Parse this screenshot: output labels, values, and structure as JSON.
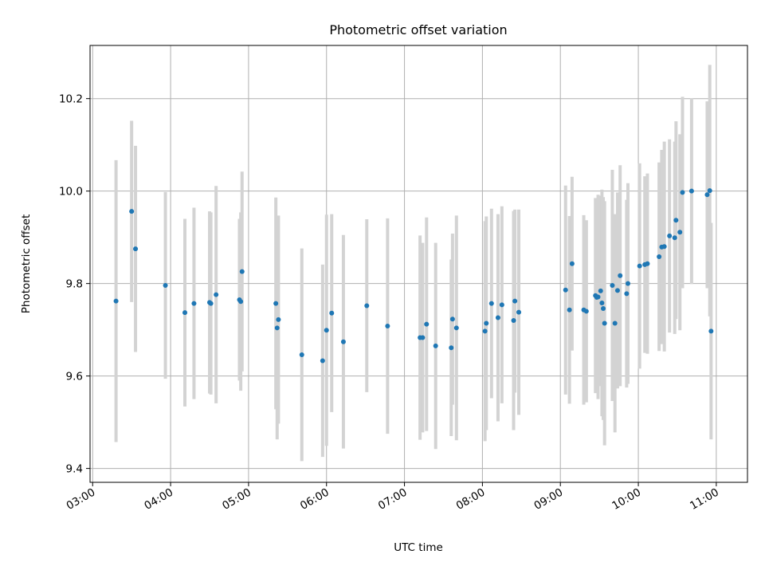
{
  "chart_data": {
    "type": "scatter",
    "title": "Photometric offset variation",
    "xlabel": "UTC time",
    "ylabel": "Photometric offset",
    "xlim": [
      "02:58",
      "11:24"
    ],
    "ylim": [
      9.37,
      10.315
    ],
    "grid": true,
    "x_ticks": [
      "03:00",
      "04:00",
      "05:00",
      "06:00",
      "07:00",
      "08:00",
      "09:00",
      "10:00",
      "11:00"
    ],
    "y_ticks": [
      "9.4",
      "9.6",
      "9.8",
      "10.0",
      "10.2"
    ],
    "colors": {
      "points": "#1f77b4",
      "errorbars": "#d3d3d3",
      "grid": "#b0b0b0"
    },
    "series": [
      {
        "x": [
          "03:18",
          "03:30",
          "03:33",
          "03:56",
          "04:11",
          "04:18",
          "04:30",
          "04:31",
          "04:35",
          "04:53",
          "04:54",
          "04:55",
          "05:21",
          "05:22",
          "05:23",
          "05:41",
          "05:57",
          "06:00",
          "06:04",
          "06:13",
          "06:31",
          "06:47",
          "07:12",
          "07:14",
          "07:17",
          "07:24",
          "07:36",
          "07:37",
          "07:40",
          "08:02",
          "08:03",
          "08:07",
          "08:12",
          "08:15",
          "08:24",
          "08:25",
          "08:28",
          "09:04",
          "09:07",
          "09:09",
          "09:18",
          "09:20",
          "09:27",
          "09:28",
          "09:29",
          "09:31",
          "09:32",
          "09:33",
          "09:34",
          "09:40",
          "09:42",
          "09:44",
          "09:46",
          "09:51",
          "09:52",
          "10:01",
          "10:05",
          "10:07",
          "10:16",
          "10:18",
          "10:20",
          "10:24",
          "10:28",
          "10:29",
          "10:32",
          "10:34",
          "10:41",
          "10:53",
          "10:55",
          "10:56"
        ],
        "y": [
          9.762,
          9.956,
          9.875,
          9.796,
          9.737,
          9.757,
          9.759,
          9.757,
          9.776,
          9.765,
          9.761,
          9.826,
          9.757,
          9.704,
          9.722,
          9.646,
          9.633,
          9.699,
          9.736,
          9.674,
          9.752,
          9.708,
          9.683,
          9.683,
          9.712,
          9.665,
          9.661,
          9.723,
          9.704,
          9.697,
          9.714,
          9.757,
          9.726,
          9.754,
          9.72,
          9.762,
          9.738,
          9.786,
          9.743,
          9.843,
          9.743,
          9.74,
          9.774,
          9.77,
          9.771,
          9.784,
          9.758,
          9.746,
          9.714,
          9.796,
          9.714,
          9.785,
          9.817,
          9.778,
          9.8,
          9.838,
          9.841,
          9.843,
          9.858,
          9.879,
          9.88,
          9.903,
          9.899,
          9.937,
          9.911,
          9.997,
          10.0,
          9.992,
          10.001,
          9.697
        ],
        "err": [
          0.305,
          0.196,
          0.223,
          0.202,
          0.203,
          0.207,
          0.197,
          0.197,
          0.235,
          0.175,
          0.193,
          0.216,
          0.229,
          0.241,
          0.225,
          0.23,
          0.208,
          0.25,
          0.214,
          0.231,
          0.187,
          0.233,
          0.221,
          0.205,
          0.231,
          0.223,
          0.191,
          0.185,
          0.243,
          0.238,
          0.231,
          0.205,
          0.224,
          0.213,
          0.237,
          0.198,
          0.222,
          0.226,
          0.203,
          0.188,
          0.205,
          0.197,
          0.211,
          0.205,
          0.221,
          0.206,
          0.245,
          0.241,
          0.264,
          0.25,
          0.236,
          0.212,
          0.239,
          0.203,
          0.217,
          0.222,
          0.191,
          0.195,
          0.204,
          0.21,
          0.227,
          0.209,
          0.208,
          0.214,
          0.212,
          0.207,
          0.201,
          0.202,
          0.272,
          0.234
        ]
      }
    ]
  }
}
